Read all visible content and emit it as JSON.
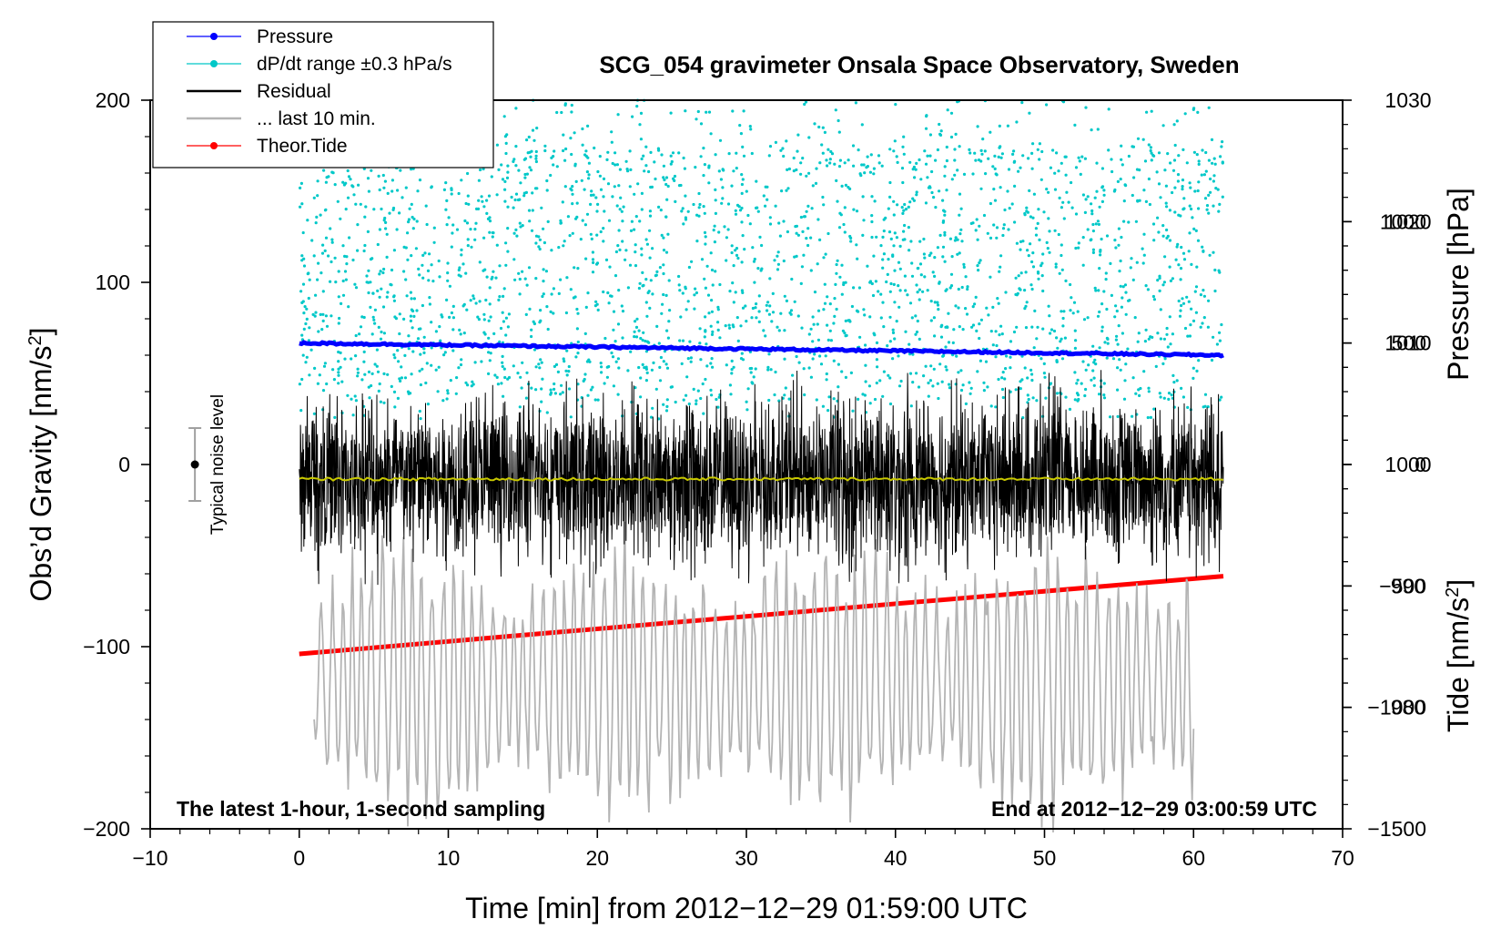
{
  "chart_data": {
    "type": "line",
    "title": "SCG_054 gravimeter Onsala Space Observatory, Sweden",
    "xlabel": "Time [min] from 2012−12−29 01:59:00 UTC",
    "ylabel_left": "Obs’d Gravity [nm/s",
    "ylabel_left_sup": "2",
    "ylabel_left_close": "]",
    "ylabel_pressure": "Pressure [hPa]",
    "ylabel_tide": "Tide [nm/s",
    "ylabel_tide_sup": "2",
    "ylabel_tide_close": "]",
    "annotation_left": "The latest 1-hour, 1-second sampling",
    "annotation_right": "End at 2012−12−29 03:00:59 UTC",
    "noise_label": "Typical noise level",
    "xlim": [
      -10,
      70
    ],
    "ylim_left": [
      -200,
      200
    ],
    "ylim_pressure": [
      970,
      1030
    ],
    "ylim_tide": [
      -1500,
      1500
    ],
    "x_ticks": [
      "−10",
      "0",
      "10",
      "20",
      "30",
      "40",
      "50",
      "60",
      "70"
    ],
    "x_tick_values": [
      -10,
      0,
      10,
      20,
      30,
      40,
      50,
      60,
      70
    ],
    "y_left_ticks": [
      "200",
      "100",
      "0",
      "−100",
      "−200"
    ],
    "y_left_tick_values": [
      200,
      100,
      0,
      -100,
      -200
    ],
    "y_pressure_ticks": [
      "1030",
      "1020",
      "1010",
      "1000",
      "990",
      "980"
    ],
    "y_pressure_tick_values": [
      1030,
      1020,
      1010,
      1000,
      990,
      980
    ],
    "y_tide_ticks": [
      "1000",
      "500",
      "0",
      "−500",
      "−1000",
      "−1500"
    ],
    "y_tide_tick_values": [
      1000,
      500,
      0,
      -500,
      -1000,
      -1500
    ],
    "noise_bar": {
      "x": -7,
      "y": 0,
      "half_range": 20
    },
    "legend": [
      {
        "label": "Pressure",
        "color": "#0000ff",
        "style": "line-dot"
      },
      {
        "label": "dP/dt range ±0.3 hPa/s",
        "color": "#00c8c8",
        "style": "line-dot"
      },
      {
        "label": "Residual",
        "color": "#000000",
        "style": "line"
      },
      {
        "label": "... last 10 min.",
        "color": "#b4b4b4",
        "style": "line"
      },
      {
        "label": "Theor.Tide",
        "color": "#ff0000",
        "style": "line-dot"
      }
    ],
    "series": [
      {
        "name": "Pressure",
        "axis": "pressure",
        "color": "#0000ff",
        "x": [
          0,
          62
        ],
        "y": [
          1010.0,
          1009.0
        ]
      },
      {
        "name": "dP/dt range ±0.3 hPa/s",
        "axis": "left",
        "color": "#00c8c8",
        "x_range": [
          0,
          62
        ],
        "y_range": [
          25,
          200
        ]
      },
      {
        "name": "Residual",
        "axis": "left",
        "color": "#000000",
        "x_range": [
          0,
          62
        ],
        "center": -8,
        "amplitude": 50
      },
      {
        "name": "Residual smoothed",
        "axis": "left",
        "color": "#c8c800",
        "x": [
          0,
          62
        ],
        "y": [
          -8,
          -8
        ]
      },
      {
        "name": "... last 10 min.",
        "axis": "left",
        "color": "#b4b4b4",
        "x_range": [
          0,
          60
        ],
        "center": -120,
        "amplitude": 60
      },
      {
        "name": "Theor.Tide",
        "axis": "tide",
        "color": "#ff0000",
        "x": [
          0,
          62
        ],
        "y": [
          -780,
          -460
        ]
      }
    ]
  }
}
